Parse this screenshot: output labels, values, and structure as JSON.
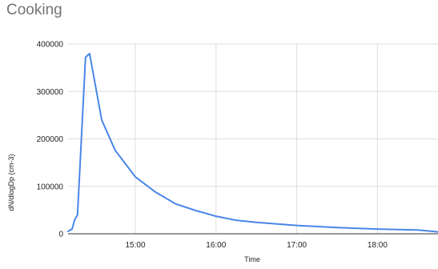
{
  "chart_data": {
    "type": "line",
    "title": "Cooking",
    "xlabel": "Time",
    "ylabel": "dN/dlogDp (cm-3)",
    "x_axis_type": "time",
    "xlim": [
      "14:10",
      "18:45"
    ],
    "ylim": [
      0,
      400000
    ],
    "y_ticks": [
      0,
      100000,
      200000,
      300000,
      400000
    ],
    "y_tick_labels": [
      "0",
      "100000",
      "200000",
      "300000",
      "400000"
    ],
    "x_ticks": [
      "15:00",
      "16:00",
      "17:00",
      "18:00"
    ],
    "grid": true,
    "legend": "none",
    "series": [
      {
        "color": "#4a86e8",
        "x": [
          "14:10",
          "14:13",
          "14:15",
          "14:17",
          "14:23",
          "14:26",
          "14:35",
          "14:45",
          "15:00",
          "15:15",
          "15:30",
          "15:45",
          "16:00",
          "16:15",
          "16:30",
          "17:00",
          "17:30",
          "18:00",
          "18:30",
          "18:45"
        ],
        "values": [
          5000,
          10000,
          30000,
          40000,
          372000,
          380000,
          240000,
          176000,
          120000,
          88000,
          63000,
          49000,
          37000,
          28500,
          24000,
          17500,
          13000,
          10000,
          8000,
          4000
        ]
      }
    ]
  }
}
